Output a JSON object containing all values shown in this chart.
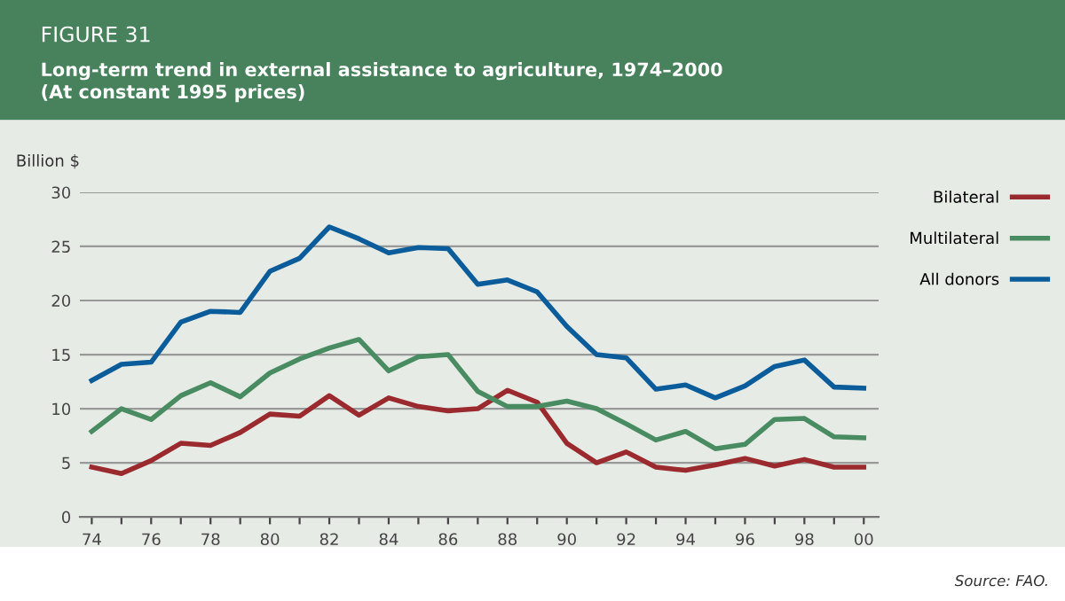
{
  "chart_data": {
    "type": "line",
    "title": "FIGURE 31",
    "subtitle": "Long-term trend in external assistance to agriculture, 1974–2000\n(At constant 1995 prices)",
    "ylabel": "Billion $",
    "x": [
      1974,
      1975,
      1976,
      1977,
      1978,
      1979,
      1980,
      1981,
      1982,
      1983,
      1984,
      1985,
      1986,
      1987,
      1988,
      1989,
      1990,
      1991,
      1992,
      1993,
      1994,
      1995,
      1996,
      1997,
      1998,
      1999,
      2000
    ],
    "series": [
      {
        "name": "Bilateral",
        "color": "#9b2a2f",
        "values": [
          4.6,
          4.0,
          5.2,
          6.8,
          6.6,
          7.8,
          9.5,
          9.3,
          11.2,
          9.4,
          11.0,
          10.2,
          9.8,
          10.0,
          11.7,
          10.6,
          6.8,
          5.0,
          6.0,
          4.6,
          4.3,
          4.8,
          5.4,
          4.7,
          5.3,
          4.6,
          4.6
        ]
      },
      {
        "name": "Multilateral",
        "color": "#4a8c62",
        "values": [
          7.9,
          10.0,
          9.0,
          11.2,
          12.4,
          11.1,
          13.3,
          14.6,
          15.6,
          16.4,
          13.5,
          14.8,
          15.0,
          11.6,
          10.2,
          10.2,
          10.7,
          10.0,
          8.6,
          7.1,
          7.9,
          6.3,
          6.7,
          9.0,
          9.1,
          7.4,
          7.3
        ]
      },
      {
        "name": "All donors",
        "color": "#0b5c9a",
        "values": [
          12.6,
          14.1,
          14.3,
          18.0,
          19.0,
          18.9,
          22.7,
          23.9,
          26.8,
          25.7,
          24.4,
          24.9,
          24.8,
          21.5,
          21.9,
          20.8,
          17.6,
          15.0,
          14.7,
          11.8,
          12.2,
          11.0,
          12.1,
          13.9,
          14.5,
          12.0,
          11.9
        ]
      }
    ],
    "xlim": [
      1973.6,
      2000.5
    ],
    "ylim": [
      0,
      30
    ],
    "yticks": [
      0,
      5,
      10,
      15,
      20,
      25,
      30
    ],
    "xticks": [
      {
        "value": 1974,
        "label": "74"
      },
      {
        "value": 1975,
        "label": null
      },
      {
        "value": 1976,
        "label": "76"
      },
      {
        "value": 1977,
        "label": null
      },
      {
        "value": 1978,
        "label": "78"
      },
      {
        "value": 1979,
        "label": null
      },
      {
        "value": 1980,
        "label": "80"
      },
      {
        "value": 1981,
        "label": null
      },
      {
        "value": 1982,
        "label": "82"
      },
      {
        "value": 1983,
        "label": null
      },
      {
        "value": 1984,
        "label": "84"
      },
      {
        "value": 1985,
        "label": null
      },
      {
        "value": 1986,
        "label": "86"
      },
      {
        "value": 1987,
        "label": null
      },
      {
        "value": 1988,
        "label": "88"
      },
      {
        "value": 1989,
        "label": null
      },
      {
        "value": 1990,
        "label": "90"
      },
      {
        "value": 1991,
        "label": null
      },
      {
        "value": 1992,
        "label": "92"
      },
      {
        "value": 1993,
        "label": null
      },
      {
        "value": 1994,
        "label": "94"
      },
      {
        "value": 1995,
        "label": null
      },
      {
        "value": 1996,
        "label": "96"
      },
      {
        "value": 1997,
        "label": null
      },
      {
        "value": 1998,
        "label": "98"
      },
      {
        "value": 1999,
        "label": null
      },
      {
        "value": 2000,
        "label": "00"
      }
    ],
    "grid": "y",
    "legend": "right",
    "line_style": "solid",
    "annotations": [
      "Source: FAO."
    ]
  }
}
